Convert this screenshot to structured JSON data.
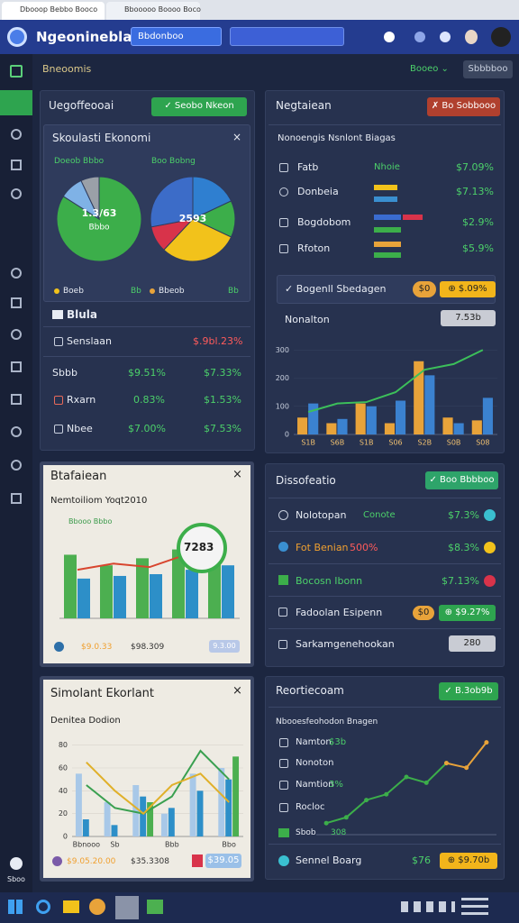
{
  "browser": {
    "tabs": [
      "Dbooop Bebbo Booco",
      "Bbooooo Boooo Boco"
    ]
  },
  "header": {
    "app_name": "Ngeonineblaro",
    "dropdown": "Bbdonboo"
  },
  "toolbar": {
    "title": "Bneoomis",
    "filter": "Booeo ⌄",
    "button": "Sbbbboo"
  },
  "economy": {
    "title": "Uegoffeooai",
    "button": "✓ Seobo Nkeon",
    "card_title": "Skoulasti Ekonomi",
    "pie_labels": [
      "Doeob Bbbo",
      "Boo Bobng"
    ],
    "legend": [
      [
        "Boeb",
        "Bb"
      ],
      [
        "Bbeob",
        "Bb"
      ]
    ],
    "table": {
      "title": "Blula",
      "rows": [
        [
          "Senslaan",
          "$.9bl.23%"
        ],
        [
          "Sbbb",
          "$9.51%",
          "$7.33%"
        ],
        [
          "Rxarn",
          "0.83%",
          "$1.53%"
        ],
        [
          "Nbee",
          "$7.00%",
          "$7.53%"
        ]
      ]
    }
  },
  "negotiation": {
    "title": "Negtaiean",
    "button": "✗ Bo Sobbooo",
    "card_title": "Nonoengis Nsnlont Biagas",
    "rows": [
      {
        "name": "Fatb",
        "status": "Nhoie",
        "value": "$7.09%"
      },
      {
        "name": "Donbeia",
        "value": "$7.13%"
      },
      {
        "name": "Bogdobom",
        "value": "$2.9%"
      },
      {
        "name": "Rfoton",
        "value": "$5.9%"
      }
    ],
    "highlight": {
      "name": "✓ Bogenll Sbedagen",
      "badge_icon": "$0",
      "badge": "⊕ $.09%"
    },
    "total": {
      "name": "Nonalton",
      "badge": "7.53b"
    }
  },
  "statistics": {
    "title": "Btafaiean",
    "subtitle": "Nemtoiliom Yoqt2010",
    "legend": "Bbooo Bbbo",
    "callout": "7283",
    "footer": [
      "$9.0.33",
      "$98.309",
      "9.3.00"
    ]
  },
  "dispatch": {
    "title": "Dissofeatio",
    "button": "✓ Boo Bbbboo",
    "rows": [
      {
        "name": "Nolotopan",
        "tag": "Conote",
        "value": "$7.3%"
      },
      {
        "name": "Fot Benian",
        "tag": "500%",
        "value": "$8.3%"
      },
      {
        "name": "Bocosn Ibonn",
        "value": "$7.13%"
      },
      {
        "name": "Fadoolan Esipenn",
        "tag": "$0",
        "value": "⊕ $9.27%"
      },
      {
        "name": "Sarkamgenehookan",
        "value": "280"
      }
    ]
  },
  "simulation": {
    "title": "Simolant Ekorlant",
    "subtitle": "Denitea Dodion",
    "footer": [
      "$9.05.20.00",
      "$35.3308",
      "$39.05"
    ]
  },
  "report": {
    "title": "Reortiecoam",
    "button": "✓ B.3ob9b",
    "subtitle": "Nbooesfeohodon Bnagen",
    "rows": [
      {
        "name": "Namton",
        "value": "$3b"
      },
      {
        "name": "Nonoton"
      },
      {
        "name": "Namtion",
        "value": "3%"
      },
      {
        "name": "Rocloc"
      }
    ],
    "footer_row": [
      "Sbob",
      "308"
    ],
    "summary": {
      "name": "Sennel Boarg",
      "value": "$76",
      "badge": "⊕ $9.70b"
    }
  },
  "sidebar": {
    "bottom_label": "Sboo"
  },
  "chart_data": [
    {
      "type": "pie",
      "values": [
        84,
        9,
        7
      ],
      "colors": [
        "#3cae4a",
        "#7fb2e6",
        "#9aa0a8"
      ],
      "center_label": "1.3/63",
      "center_sublabel": "Bbbo"
    },
    {
      "type": "pie",
      "values": [
        18,
        14,
        30,
        10,
        28
      ],
      "colors": [
        "#2f7fd0",
        "#3cae4a",
        "#f2c21b",
        "#d8334a",
        "#3c6cc8"
      ],
      "center_label": "2593"
    },
    {
      "type": "bar",
      "categories": [
        "S1B",
        "S6B",
        "S1B",
        "S06",
        "S2B",
        "S0B",
        "S08"
      ],
      "ylim": [
        0,
        320
      ],
      "yticks": [
        0,
        100,
        200,
        300
      ],
      "series": [
        {
          "type": "bar",
          "color": "#e8a33a",
          "values": [
            60,
            40,
            110,
            40,
            260,
            60,
            50
          ]
        },
        {
          "type": "bar",
          "color": "#3b82d0",
          "values": [
            110,
            55,
            100,
            120,
            210,
            40,
            130
          ]
        },
        {
          "type": "line",
          "color": "#3cbf5a",
          "values": [
            80,
            110,
            115,
            150,
            230,
            250,
            300
          ]
        }
      ]
    },
    {
      "type": "bar",
      "categories": [
        null,
        null,
        null,
        null,
        null
      ],
      "ylim": [
        0,
        100
      ],
      "series": [
        {
          "type": "bar",
          "color": "#4caf50",
          "values": [
            72,
            60,
            68,
            78,
            80
          ]
        },
        {
          "type": "bar",
          "color": "#2d8fc8",
          "values": [
            45,
            48,
            50,
            55,
            60
          ]
        },
        {
          "type": "line",
          "color": "#d8452e",
          "values": [
            55,
            62,
            58,
            72,
            88
          ]
        }
      ]
    },
    {
      "type": "bar",
      "categories": [
        "Bbnooo",
        "Sb",
        null,
        "Bbb",
        null,
        "Bbo"
      ],
      "ylim": [
        0,
        90
      ],
      "yticks": [
        0,
        20,
        40,
        60,
        80
      ],
      "series": [
        {
          "type": "bar",
          "color": "#a8c8e8",
          "values": [
            55,
            30,
            45,
            20,
            55,
            60
          ]
        },
        {
          "type": "bar",
          "color": "#2d8fc8",
          "values": [
            15,
            10,
            35,
            25,
            40,
            50
          ]
        },
        {
          "type": "bar",
          "color": "#4caf50",
          "values": [
            0,
            0,
            30,
            0,
            0,
            70
          ]
        },
        {
          "type": "line",
          "color": "#3aa050",
          "values": [
            45,
            25,
            20,
            35,
            75,
            50
          ]
        },
        {
          "type": "line",
          "color": "#e0b02a",
          "values": [
            65,
            40,
            20,
            45,
            55,
            30
          ]
        }
      ]
    },
    {
      "type": "line",
      "categories": [
        null,
        null,
        null,
        null,
        null,
        null,
        null,
        null,
        null
      ],
      "ylim": [
        0,
        100
      ],
      "markers": true,
      "series": [
        {
          "type": "line",
          "color": "#3cae4a",
          "values": [
            10,
            15,
            30,
            35,
            50,
            45,
            62,
            null,
            null
          ]
        },
        {
          "type": "line",
          "color": "#e8a33a",
          "values": [
            null,
            null,
            null,
            null,
            null,
            null,
            62,
            58,
            80
          ]
        }
      ]
    }
  ]
}
